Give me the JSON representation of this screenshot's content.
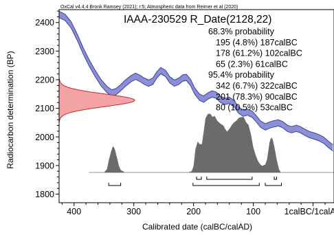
{
  "chart_data": {
    "type": "area",
    "header": "OxCal v4.4.4 Bronk Ramsey (2021); r:5; Atmospheric data from Reimer et al (2020)",
    "title": "IAAA-230529 R_Date(2128,22)",
    "xlabel": "Calibrated date (calBC/calAD)",
    "ylabel": "Radiocarbon determination (BP)",
    "x_ticks": [
      {
        "value": 400,
        "label": "400"
      },
      {
        "value": 300,
        "label": "300"
      },
      {
        "value": 200,
        "label": "200"
      },
      {
        "value": 100,
        "label": "100"
      },
      {
        "value": 0,
        "label": "1calBC/1calAD"
      }
    ],
    "y_ticks": [
      1800,
      1900,
      2000,
      2100,
      2200,
      2300,
      2400
    ],
    "xlim": [
      425,
      -35
    ],
    "ylim": [
      1770,
      2445
    ],
    "summary_lines": [
      "68.3% probability",
      "195 (4.8%) 187calBC",
      "178 (61.2%) 102calBC",
      "65 (2.3%) 61calBC",
      "95.4% probability",
      "342 (6.7%) 322calBC",
      "201 (78.3%) 90calBC",
      "80 (10.5%) 53calBC"
    ],
    "calibration_curve": {
      "x": [
        425,
        415,
        405,
        395,
        385,
        375,
        365,
        355,
        345,
        337,
        330,
        322,
        314,
        305,
        297,
        290,
        282,
        275,
        268,
        262,
        255,
        247,
        240,
        232,
        225,
        218,
        212,
        205,
        198,
        190,
        183,
        176,
        169,
        162,
        155,
        147,
        140,
        132,
        125,
        117,
        110,
        102,
        95,
        88,
        80,
        72,
        65,
        58,
        51,
        43,
        36,
        28,
        21,
        13,
        6,
        -2,
        -10,
        -18,
        -25,
        -33
      ],
      "y": [
        2428,
        2418,
        2392,
        2350,
        2302,
        2260,
        2223,
        2190,
        2166,
        2154,
        2158,
        2172,
        2188,
        2203,
        2212,
        2205,
        2194,
        2188,
        2195,
        2215,
        2232,
        2222,
        2200,
        2188,
        2194,
        2206,
        2208,
        2190,
        2160,
        2139,
        2132,
        2143,
        2150,
        2146,
        2131,
        2124,
        2128,
        2116,
        2094,
        2083,
        2087,
        2079,
        2063,
        2045,
        2035,
        2042,
        2046,
        2049,
        2043,
        2030,
        2025,
        2030,
        2025,
        2015,
        2008,
        2003,
        1997,
        1988,
        1975,
        1962
      ],
      "sigma": 11,
      "fill_color": "#8a8fd6",
      "edge_color": "#3b3f9e"
    },
    "radiocarbon_date": {
      "mean": 2128,
      "sigma": 22,
      "fill_color": "#f4a3a5",
      "edge_color": "#c0282c"
    },
    "posterior": {
      "x": [
        425,
        350,
        345,
        342,
        338,
        335,
        332,
        328,
        325,
        322,
        315,
        210,
        203,
        200,
        197,
        193,
        190,
        186,
        183,
        180,
        176,
        172,
        168,
        165,
        160,
        155,
        150,
        147,
        144,
        140,
        136,
        132,
        128,
        124,
        120,
        116,
        112,
        108,
        104,
        100,
        96,
        92,
        88,
        85,
        80,
        77,
        75,
        73,
        71,
        69,
        67,
        65,
        63,
        61,
        59,
        57,
        54,
        -35
      ],
      "density": [
        0,
        0,
        0.05,
        0.18,
        0.32,
        0.4,
        0.36,
        0.22,
        0.1,
        0.04,
        0,
        0,
        0.02,
        0.1,
        0.35,
        0.47,
        0.43,
        0.43,
        0.62,
        0.82,
        0.89,
        0.89,
        0.84,
        0.86,
        0.78,
        0.74,
        0.71,
        0.66,
        0.62,
        0.66,
        0.72,
        0.76,
        0.79,
        0.83,
        0.84,
        0.84,
        0.76,
        0.72,
        0.58,
        0.38,
        0.26,
        0.17,
        0.12,
        0.1,
        0.12,
        0.2,
        0.32,
        0.45,
        0.51,
        0.53,
        0.48,
        0.4,
        0.3,
        0.2,
        0.12,
        0.05,
        0,
        0
      ],
      "fill_color": "#6b6b6b"
    },
    "range_68": [
      [
        195,
        187
      ],
      [
        178,
        102
      ],
      [
        65,
        61
      ]
    ],
    "range_95": [
      [
        342,
        322
      ],
      [
        201,
        90
      ],
      [
        80,
        53
      ]
    ]
  }
}
